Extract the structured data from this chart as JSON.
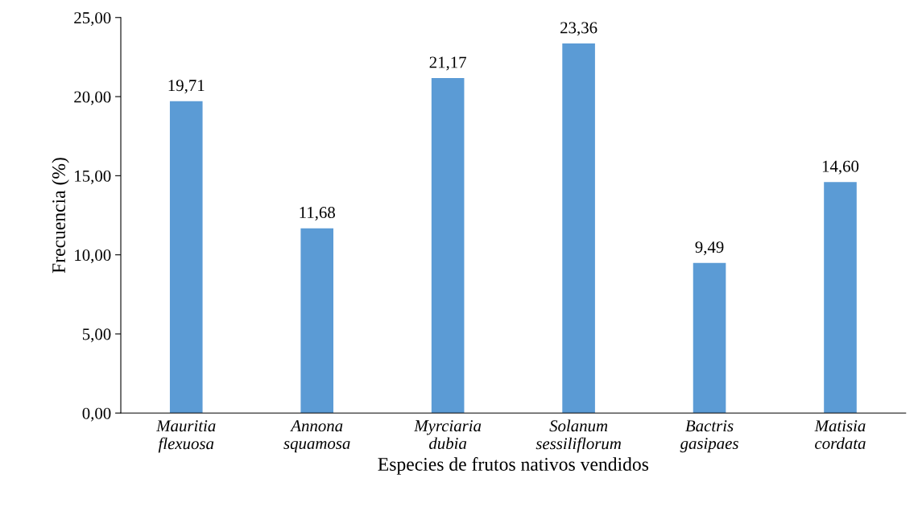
{
  "chart_data": {
    "type": "bar",
    "xlabel": "Especies de frutos nativos vendidos",
    "ylabel": "Frecuencia (%)",
    "categories": [
      "Mauritia\nflexuosa",
      "Annona\nsquamosa",
      "Myrciaria\ndubia",
      "Solanum\nsessiliflorum",
      "Bactris\ngasipaes",
      "Matisia\ncordata"
    ],
    "values": [
      19.71,
      11.68,
      21.17,
      23.36,
      9.49,
      14.6
    ],
    "value_labels": [
      "19,71",
      "11,68",
      "21,17",
      "23,36",
      "9,49",
      "14,60"
    ],
    "color": "#5b9bd5",
    "ylim": [
      0,
      25
    ],
    "yticks": [
      {
        "value": 0,
        "label": "0,00"
      },
      {
        "value": 5,
        "label": "5,00"
      },
      {
        "value": 10,
        "label": "10,00"
      },
      {
        "value": 15,
        "label": "15,00"
      },
      {
        "value": 20,
        "label": "20,00"
      },
      {
        "value": 25,
        "label": "25,00"
      }
    ],
    "grid": false,
    "legend": false
  }
}
